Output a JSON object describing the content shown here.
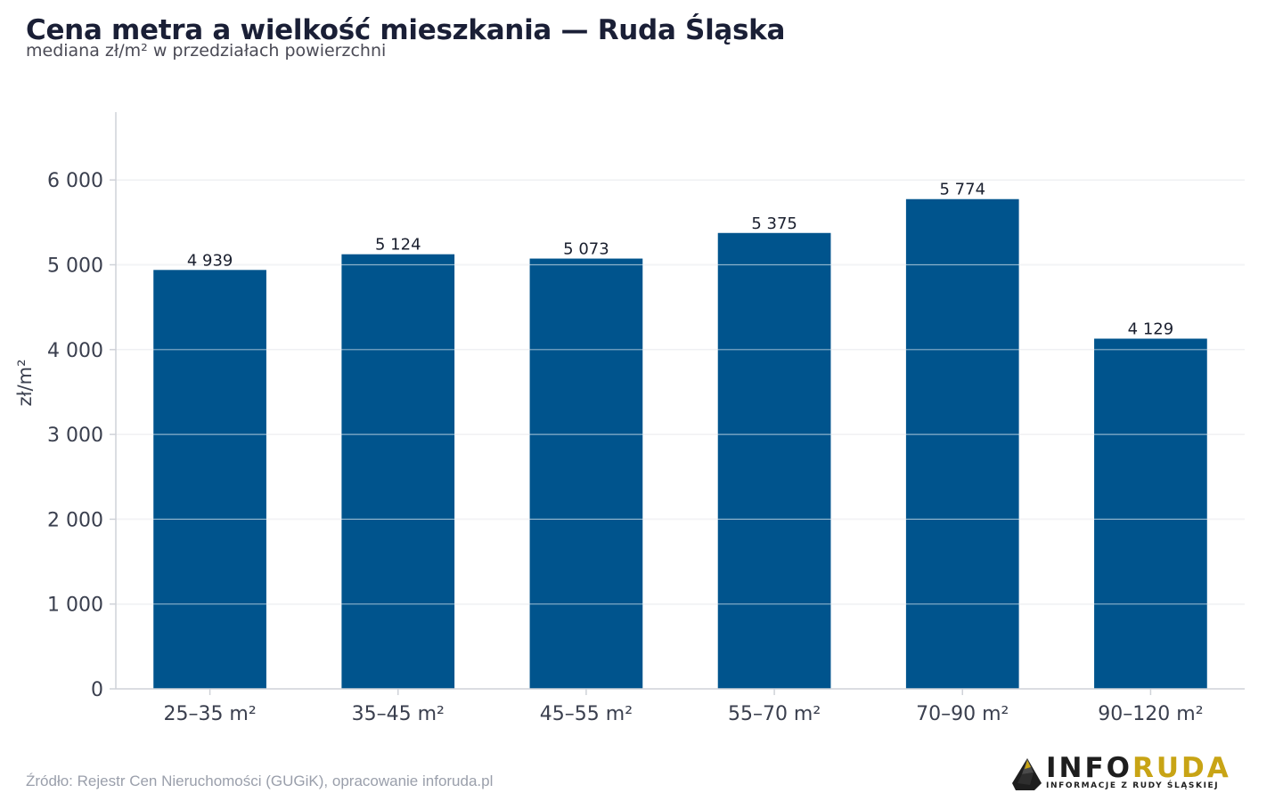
{
  "title": "Cena metra a wielkość mieszkania — Ruda Śląska",
  "subtitle": "mediana zł/m² w przedziałach powierzchni",
  "source": "Źródło: Rejestr Cen Nieruchomości (GUGiK), opracowanie inforuda.pl",
  "logo": {
    "word_part1": "INFO",
    "word_part2": "RUDA",
    "tagline": "INFORMACJE Z RUDY ŚLĄSKIEJ",
    "icon": "rock-icon"
  },
  "colors": {
    "bar": "#00548d",
    "grid": "#e4e6ea",
    "axis": "#cfd2d8",
    "text": "#3a3f4e",
    "logo_dark": "#1e1e1e",
    "logo_gold": "#c8a415"
  },
  "chart_data": {
    "type": "bar",
    "categories": [
      "25–35 m²",
      "35–45 m²",
      "45–55 m²",
      "55–70 m²",
      "70–90 m²",
      "90–120 m²"
    ],
    "values": [
      4939,
      5124,
      5073,
      5375,
      5774,
      4129
    ],
    "value_labels": [
      "4 939",
      "5 124",
      "5 073",
      "5 375",
      "5 774",
      "4 129"
    ],
    "ylabel": "zł/m²",
    "xlabel": "",
    "ylim": [
      0,
      6800
    ],
    "yticks": [
      0,
      1000,
      2000,
      3000,
      4000,
      5000,
      6000
    ],
    "ytick_labels": [
      "0",
      "1 000",
      "2 000",
      "3 000",
      "4 000",
      "5 000",
      "6 000"
    ],
    "grid": true,
    "legend": "none"
  }
}
